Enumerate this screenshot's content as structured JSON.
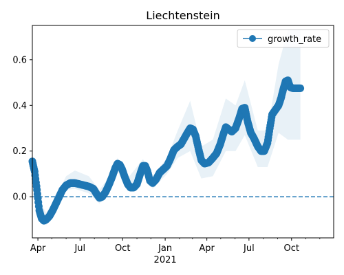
{
  "chart_data": {
    "type": "line",
    "title": "Liechtenstein",
    "xlabel": "",
    "ylabel": "",
    "x_range": [
      "2020-03-20",
      "2021-12-31"
    ],
    "ylim": [
      -0.18,
      0.75
    ],
    "grid": false,
    "legend": {
      "placement": "top-right",
      "entries": [
        "growth_rate"
      ]
    },
    "x_ticks": [
      {
        "date": "2020-04-01",
        "label": "Apr"
      },
      {
        "date": "2020-07-01",
        "label": "Jul"
      },
      {
        "date": "2020-10-01",
        "label": "Oct"
      },
      {
        "date": "2021-01-01",
        "label": "Jan",
        "sublabel": "2021"
      },
      {
        "date": "2021-04-01",
        "label": "Apr"
      },
      {
        "date": "2021-07-01",
        "label": "Jul"
      },
      {
        "date": "2021-10-01",
        "label": "Oct"
      }
    ],
    "y_ticks": [
      0.0,
      0.2,
      0.4,
      0.6
    ],
    "y_tick_labels": [
      "0.0",
      "0.2",
      "0.4",
      "0.6"
    ],
    "reference_line": {
      "y": 0.0,
      "style": "dashed"
    },
    "colors": {
      "series": "#1f77b4",
      "band": "#1f77b4"
    },
    "series": [
      {
        "name": "growth_rate",
        "marker": "circle",
        "points": [
          [
            "2020-03-20",
            0.155
          ],
          [
            "2020-03-25",
            0.11
          ],
          [
            "2020-03-30",
            0.03
          ],
          [
            "2020-04-04",
            -0.06
          ],
          [
            "2020-04-09",
            -0.095
          ],
          [
            "2020-04-14",
            -0.105
          ],
          [
            "2020-04-19",
            -0.1
          ],
          [
            "2020-04-26",
            -0.085
          ],
          [
            "2020-05-03",
            -0.06
          ],
          [
            "2020-05-10",
            -0.03
          ],
          [
            "2020-05-17",
            0.0
          ],
          [
            "2020-05-24",
            0.03
          ],
          [
            "2020-06-01",
            0.05
          ],
          [
            "2020-06-10",
            0.06
          ],
          [
            "2020-06-20",
            0.06
          ],
          [
            "2020-06-30",
            0.055
          ],
          [
            "2020-07-10",
            0.05
          ],
          [
            "2020-07-20",
            0.045
          ],
          [
            "2020-07-30",
            0.035
          ],
          [
            "2020-08-05",
            0.015
          ],
          [
            "2020-08-12",
            -0.005
          ],
          [
            "2020-08-18",
            0.0
          ],
          [
            "2020-08-25",
            0.02
          ],
          [
            "2020-09-01",
            0.05
          ],
          [
            "2020-09-08",
            0.085
          ],
          [
            "2020-09-15",
            0.125
          ],
          [
            "2020-09-20",
            0.145
          ],
          [
            "2020-09-25",
            0.14
          ],
          [
            "2020-09-30",
            0.12
          ],
          [
            "2020-10-06",
            0.085
          ],
          [
            "2020-10-12",
            0.055
          ],
          [
            "2020-10-18",
            0.04
          ],
          [
            "2020-10-25",
            0.04
          ],
          [
            "2020-11-01",
            0.055
          ],
          [
            "2020-11-08",
            0.1
          ],
          [
            "2020-11-14",
            0.135
          ],
          [
            "2020-11-19",
            0.135
          ],
          [
            "2020-11-24",
            0.11
          ],
          [
            "2020-11-29",
            0.07
          ],
          [
            "2020-12-05",
            0.06
          ],
          [
            "2020-12-12",
            0.075
          ],
          [
            "2020-12-20",
            0.105
          ],
          [
            "2020-12-28",
            0.12
          ],
          [
            "2021-01-05",
            0.135
          ],
          [
            "2021-01-12",
            0.165
          ],
          [
            "2021-01-20",
            0.205
          ],
          [
            "2021-01-28",
            0.22
          ],
          [
            "2021-02-04",
            0.23
          ],
          [
            "2021-02-11",
            0.255
          ],
          [
            "2021-02-18",
            0.28
          ],
          [
            "2021-02-24",
            0.3
          ],
          [
            "2021-03-02",
            0.295
          ],
          [
            "2021-03-08",
            0.265
          ],
          [
            "2021-03-14",
            0.21
          ],
          [
            "2021-03-20",
            0.16
          ],
          [
            "2021-03-27",
            0.145
          ],
          [
            "2021-04-05",
            0.15
          ],
          [
            "2021-04-14",
            0.17
          ],
          [
            "2021-04-22",
            0.19
          ],
          [
            "2021-04-30",
            0.23
          ],
          [
            "2021-05-06",
            0.27
          ],
          [
            "2021-05-12",
            0.305
          ],
          [
            "2021-05-18",
            0.295
          ],
          [
            "2021-05-25",
            0.285
          ],
          [
            "2021-06-02",
            0.3
          ],
          [
            "2021-06-10",
            0.345
          ],
          [
            "2021-06-16",
            0.385
          ],
          [
            "2021-06-22",
            0.39
          ],
          [
            "2021-06-28",
            0.33
          ],
          [
            "2021-07-05",
            0.28
          ],
          [
            "2021-07-12",
            0.255
          ],
          [
            "2021-07-20",
            0.22
          ],
          [
            "2021-07-27",
            0.2
          ],
          [
            "2021-08-03",
            0.2
          ],
          [
            "2021-08-10",
            0.235
          ],
          [
            "2021-08-15",
            0.3
          ],
          [
            "2021-08-20",
            0.36
          ],
          [
            "2021-08-27",
            0.38
          ],
          [
            "2021-09-03",
            0.4
          ],
          [
            "2021-09-08",
            0.43
          ],
          [
            "2021-09-13",
            0.47
          ],
          [
            "2021-09-18",
            0.505
          ],
          [
            "2021-09-23",
            0.51
          ],
          [
            "2021-09-28",
            0.48
          ],
          [
            "2021-10-04",
            0.475
          ],
          [
            "2021-10-12",
            0.475
          ],
          [
            "2021-10-20",
            0.475
          ]
        ],
        "band_upper": [
          [
            "2020-03-20",
            0.175
          ],
          [
            "2020-04-04",
            -0.02
          ],
          [
            "2020-04-19",
            -0.07
          ],
          [
            "2020-05-10",
            0.0
          ],
          [
            "2020-06-01",
            0.09
          ],
          [
            "2020-06-20",
            0.115
          ],
          [
            "2020-07-20",
            0.09
          ],
          [
            "2020-08-12",
            0.03
          ],
          [
            "2020-09-01",
            0.085
          ],
          [
            "2020-09-20",
            0.17
          ],
          [
            "2020-10-12",
            0.08
          ],
          [
            "2020-11-14",
            0.165
          ],
          [
            "2020-12-05",
            0.09
          ],
          [
            "2021-01-05",
            0.17
          ],
          [
            "2021-01-28",
            0.29
          ],
          [
            "2021-02-24",
            0.42
          ],
          [
            "2021-03-20",
            0.22
          ],
          [
            "2021-04-14",
            0.25
          ],
          [
            "2021-05-12",
            0.43
          ],
          [
            "2021-06-02",
            0.4
          ],
          [
            "2021-06-22",
            0.51
          ],
          [
            "2021-07-20",
            0.29
          ],
          [
            "2021-08-10",
            0.29
          ],
          [
            "2021-09-03",
            0.58
          ],
          [
            "2021-09-23",
            0.73
          ],
          [
            "2021-10-20",
            0.73
          ]
        ],
        "band_lower": [
          [
            "2020-03-20",
            0.135
          ],
          [
            "2020-04-04",
            -0.09
          ],
          [
            "2020-04-19",
            -0.125
          ],
          [
            "2020-05-10",
            -0.055
          ],
          [
            "2020-06-01",
            0.03
          ],
          [
            "2020-06-20",
            0.035
          ],
          [
            "2020-07-20",
            0.015
          ],
          [
            "2020-08-12",
            -0.03
          ],
          [
            "2020-09-01",
            0.025
          ],
          [
            "2020-09-20",
            0.115
          ],
          [
            "2020-10-12",
            0.025
          ],
          [
            "2020-11-14",
            0.105
          ],
          [
            "2020-12-05",
            0.035
          ],
          [
            "2021-01-05",
            0.1
          ],
          [
            "2021-01-28",
            0.17
          ],
          [
            "2021-02-24",
            0.2
          ],
          [
            "2021-03-20",
            0.08
          ],
          [
            "2021-04-14",
            0.09
          ],
          [
            "2021-05-12",
            0.2
          ],
          [
            "2021-06-02",
            0.2
          ],
          [
            "2021-06-22",
            0.27
          ],
          [
            "2021-07-20",
            0.13
          ],
          [
            "2021-08-10",
            0.13
          ],
          [
            "2021-09-03",
            0.28
          ],
          [
            "2021-09-23",
            0.25
          ],
          [
            "2021-10-20",
            0.25
          ]
        ]
      }
    ]
  }
}
